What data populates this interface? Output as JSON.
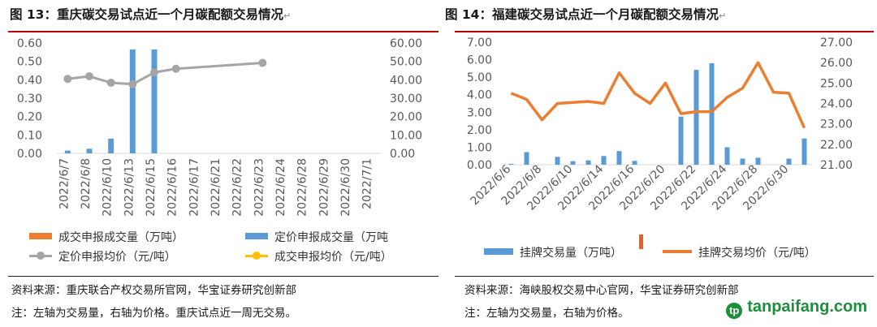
{
  "left": {
    "title": "图 13：重庆碳交易试点近一个月碳配额交易情况",
    "title_mark": "↵",
    "source": "资料来源：重庆联合产权交易所官网，华宝证券研究创新部",
    "note": "注：左轴为交易量，右轴为价格。重庆试点近一周无交易。",
    "legend": [
      {
        "label": "成交申报成交量（万吨）",
        "color": "#ed7d31",
        "kind": "bar"
      },
      {
        "label": "定价申报成交量（万吨",
        "color": "#5b9bd5",
        "kind": "bar"
      },
      {
        "label": "定价申报均价（元/吨）",
        "color": "#a5a5a5",
        "kind": "line"
      },
      {
        "label": "成交申报均价（元/吨）",
        "color": "#ffc000",
        "kind": "line"
      }
    ]
  },
  "right": {
    "title": "图 14：福建碳交易试点近一个月碳配额交易情况",
    "title_mark": "↵",
    "source": "资料来源：海峡股权交易中心官网，华宝证券研究创新部",
    "note": "注：左轴为交易量，右轴为价格。",
    "legend": [
      {
        "label": "挂牌交易量（万吨）",
        "color": "#5b9bd5",
        "kind": "bar"
      },
      {
        "label": "挂牌交易均价（元/吨）",
        "color": "#ed7d31",
        "kind": "line"
      }
    ]
  },
  "watermark": "tanpaifang.com",
  "chart_data": [
    {
      "type": "bar",
      "categories": [
        "2022/6/7",
        "2022/6/8",
        "2022/6/10",
        "2022/6/13",
        "2022/6/15",
        "2022/6/16",
        "2022/6/17",
        "2022/6/21",
        "2022/6/22",
        "2022/6/23",
        "2022/6/24",
        "2022/6/28",
        "2022/6/29",
        "2022/6/30",
        "2022/7/1"
      ],
      "y_left": {
        "min": 0,
        "max": 0.6,
        "step": 0.1,
        "decimals": 2
      },
      "y_right": {
        "min": 0,
        "max": 60,
        "step": 10,
        "decimals": 2
      },
      "series": [
        {
          "name": "成交申报成交量（万吨）",
          "type": "bar",
          "axis": "left",
          "color": "#ed7d31",
          "values": [
            null,
            null,
            null,
            null,
            null,
            null,
            null,
            null,
            null,
            null,
            null,
            null,
            null,
            null,
            null
          ]
        },
        {
          "name": "定价申报成交量（万吨",
          "type": "bar",
          "axis": "left",
          "color": "#5b9bd5",
          "values": [
            0.015,
            0.025,
            0.08,
            0.565,
            0.565,
            null,
            null,
            null,
            null,
            null,
            null,
            null,
            null,
            null,
            null
          ]
        },
        {
          "name": "定价申报均价（元/吨）",
          "type": "line",
          "axis": "right",
          "color": "#a5a5a5",
          "values": [
            40.5,
            41.9,
            38.4,
            37.6,
            44.0,
            46.0,
            null,
            null,
            null,
            49.2,
            null,
            null,
            null,
            null,
            null
          ]
        },
        {
          "name": "成交申报均价（元/吨）",
          "type": "line",
          "axis": "right",
          "color": "#ffc000",
          "values": [
            null,
            null,
            null,
            null,
            null,
            null,
            null,
            null,
            null,
            null,
            null,
            null,
            null,
            null,
            null
          ]
        }
      ]
    },
    {
      "type": "bar",
      "categories": [
        "2022/6/6",
        "2022/6/7",
        "2022/6/8",
        "2022/6/9",
        "2022/6/10",
        "2022/6/13",
        "2022/6/14",
        "2022/6/15",
        "2022/6/16",
        "2022/6/17",
        "2022/6/20",
        "2022/6/21",
        "2022/6/22",
        "2022/6/23",
        "2022/6/24",
        "2022/6/27",
        "2022/6/28",
        "2022/6/29",
        "2022/6/30",
        "2022/7/1"
      ],
      "tick_labels": [
        "2022/6/6",
        "",
        "2022/6/8",
        "",
        "2022/6/10",
        "",
        "2022/6/14",
        "",
        "2022/6/16",
        "",
        "2022/6/20",
        "",
        "2022/6/22",
        "",
        "2022/6/24",
        "",
        "2022/6/28",
        "",
        "2022/6/30",
        ""
      ],
      "y_left": {
        "min": 0,
        "max": 7,
        "step": 1,
        "decimals": 2
      },
      "y_right": {
        "min": 21,
        "max": 27,
        "step": 1,
        "decimals": 2
      },
      "series": [
        {
          "name": "挂牌交易量（万吨）",
          "type": "bar",
          "axis": "left",
          "color": "#5b9bd5",
          "values": [
            0.05,
            0.72,
            0.0,
            0.45,
            0.2,
            0.25,
            0.5,
            0.78,
            0.22,
            0.0,
            0.0,
            2.75,
            5.42,
            5.8,
            1.0,
            0.35,
            0.4,
            0.0,
            0.35,
            1.5
          ]
        },
        {
          "name": "挂牌交易均价（元/吨）",
          "type": "line",
          "axis": "right",
          "color": "#ed7d31",
          "values": [
            24.5,
            24.2,
            23.2,
            24.0,
            24.05,
            24.1,
            24.0,
            25.5,
            24.5,
            24.0,
            25.0,
            23.5,
            23.6,
            23.6,
            24.3,
            24.75,
            26.0,
            24.55,
            24.5,
            22.8
          ]
        }
      ]
    }
  ]
}
